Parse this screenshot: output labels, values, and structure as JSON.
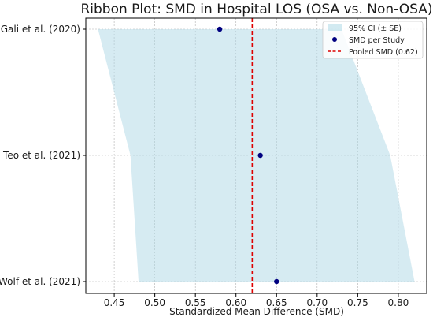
{
  "chart_data": {
    "type": "area",
    "title": "Ribbon Plot: SMD in Hospital LOS (OSA vs. Non-OSA)",
    "xlabel": "Standardized Mean Difference (SMD)",
    "ylabel": "",
    "xlim": [
      0.415,
      0.835
    ],
    "xticks": [
      "0.45",
      "0.50",
      "0.55",
      "0.60",
      "0.65",
      "0.70",
      "0.75",
      "0.80"
    ],
    "grid": true,
    "legend_position": "top-right",
    "studies": [
      "Gali et al. (2020)",
      "Teo et al. (2021)",
      "Wolf et al. (2021)"
    ],
    "series": [
      {
        "name": "95% CI (± SE)",
        "kind": "ribbon",
        "color": "#add8e6",
        "lower": [
          0.43,
          0.47,
          0.48
        ],
        "upper": [
          0.73,
          0.79,
          0.82
        ]
      },
      {
        "name": "SMD per Study",
        "kind": "points",
        "color": "#000080",
        "values": [
          0.58,
          0.63,
          0.65
        ]
      },
      {
        "name": "Pooled SMD (0.62)",
        "kind": "reference-line",
        "color": "#dd0000",
        "value": 0.62
      }
    ]
  }
}
